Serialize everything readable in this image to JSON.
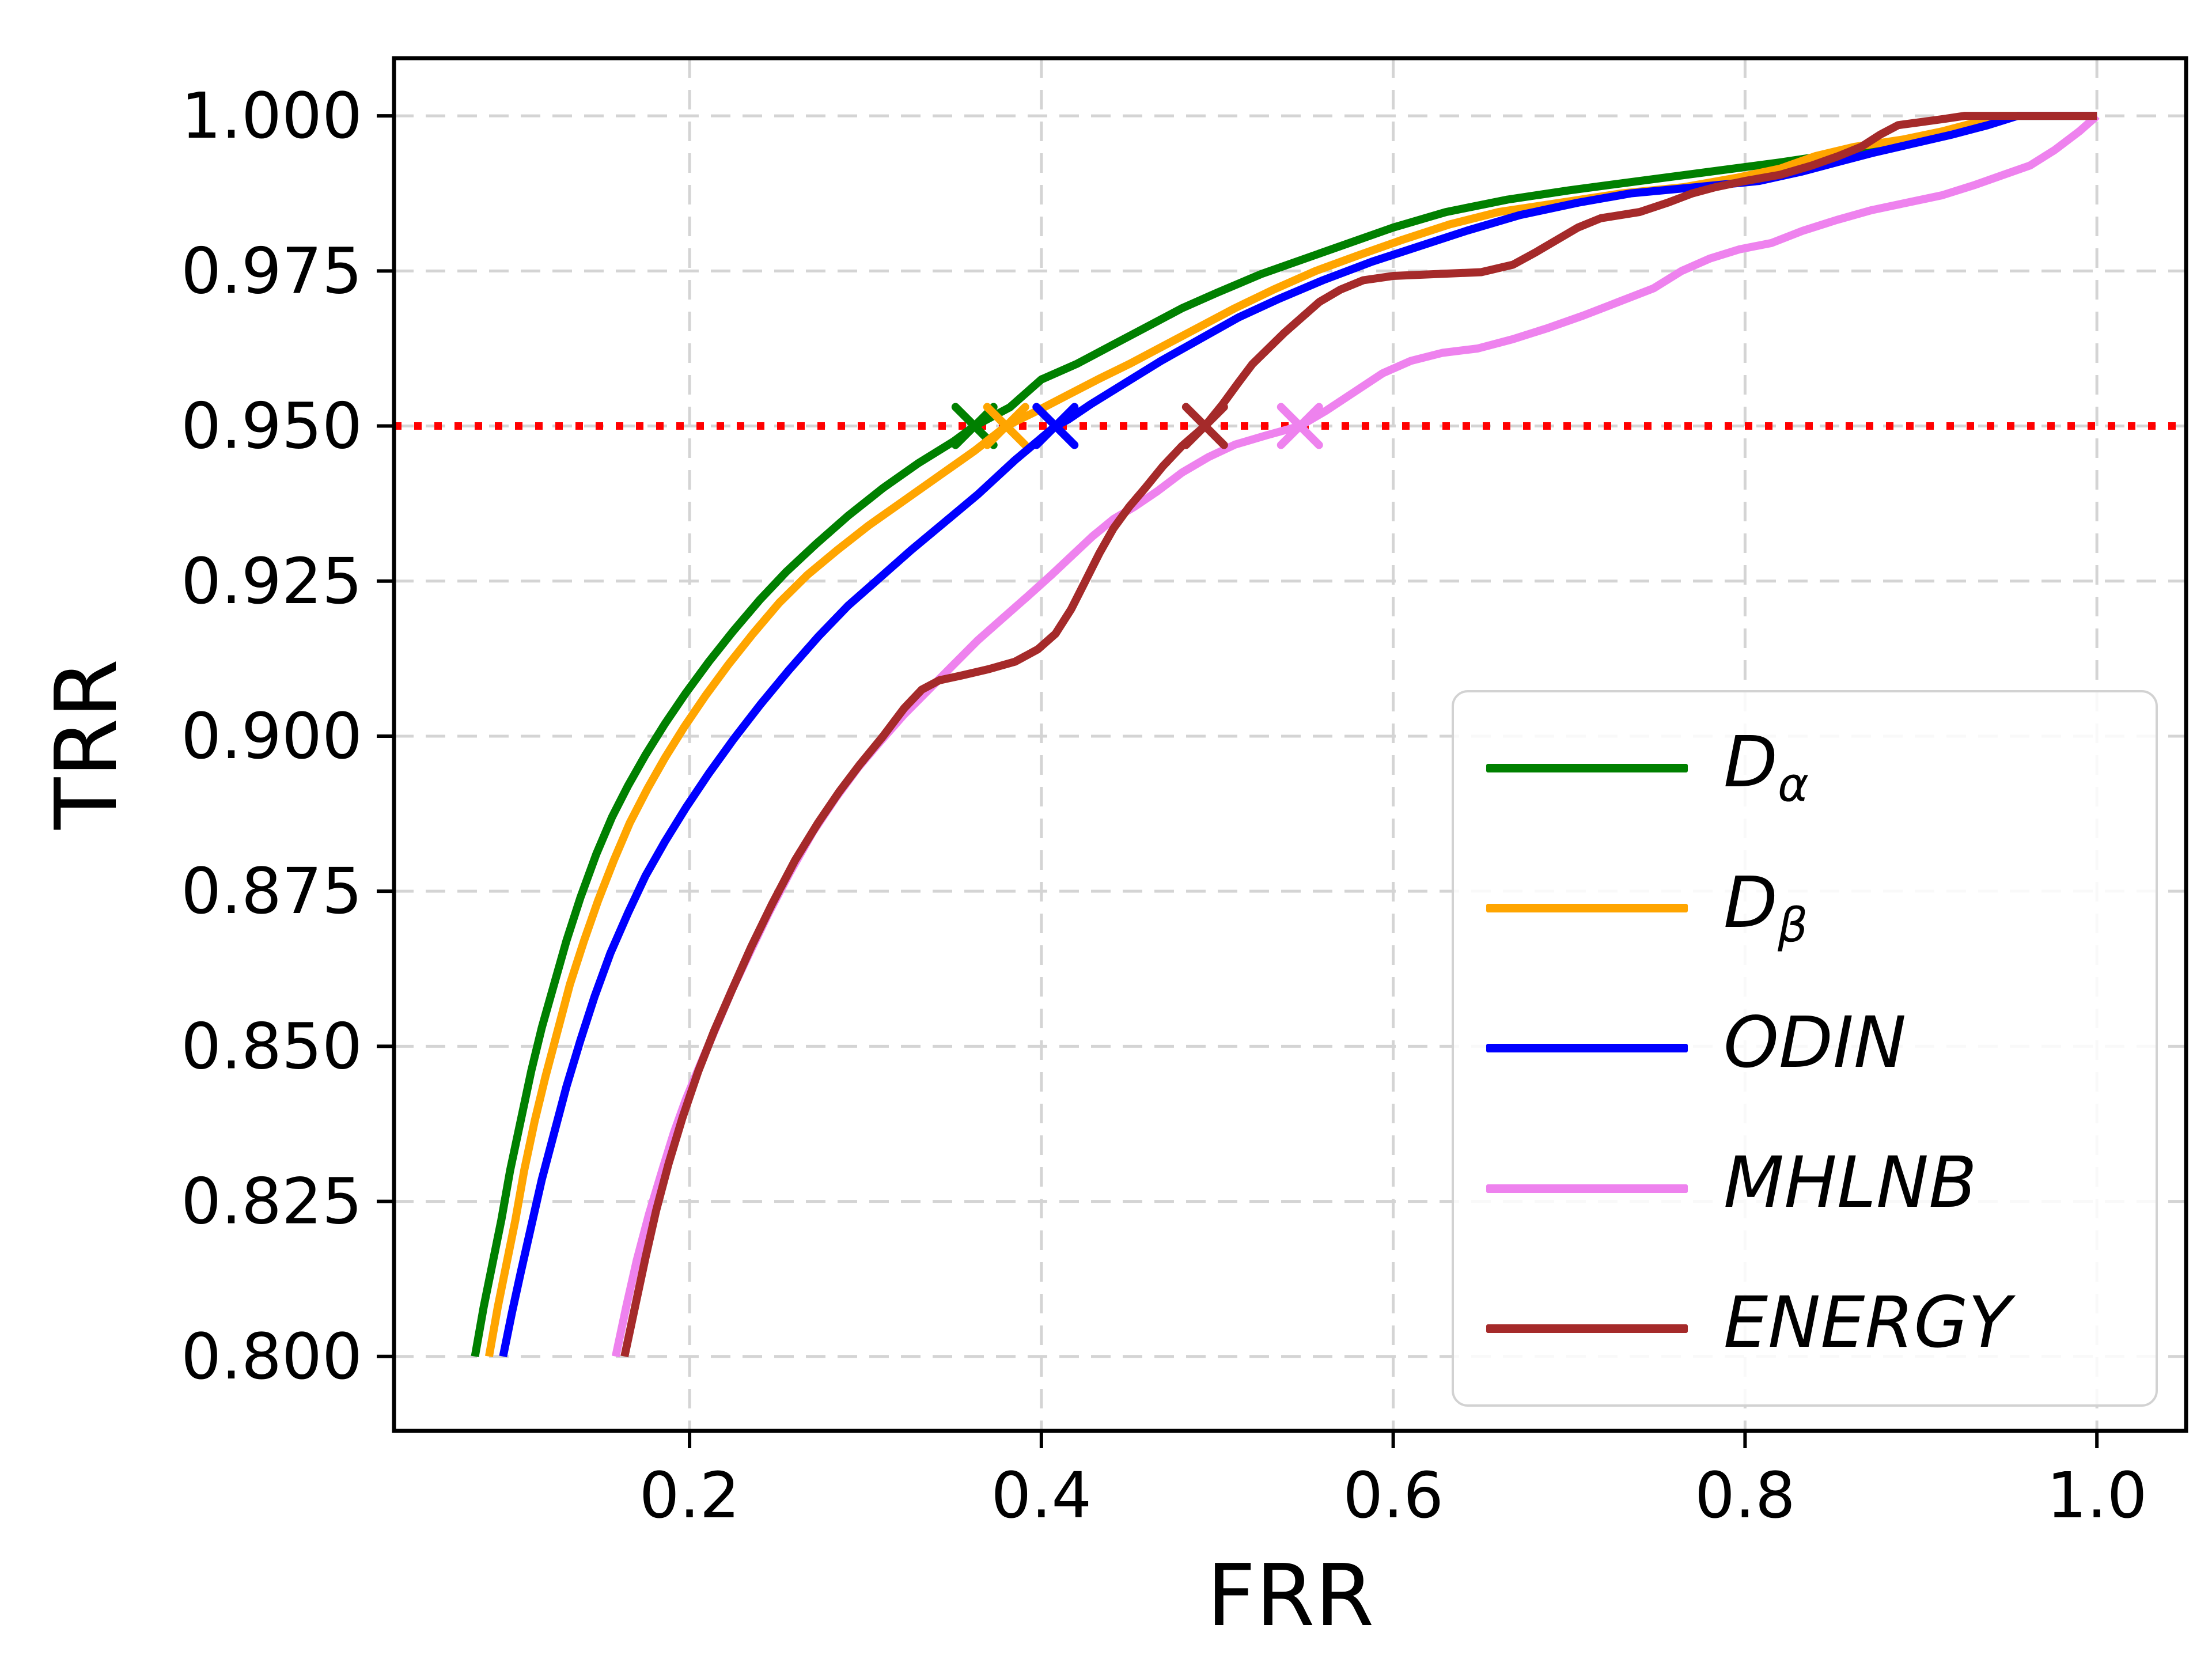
{
  "chart_data": {
    "type": "line",
    "title": "",
    "xlabel": "FRR",
    "ylabel": "TRR",
    "xlim": [
      0.032,
      1.0507
    ],
    "ylim": [
      0.788,
      1.0093
    ],
    "grid": true,
    "grid_color": "#d4d4d4",
    "background": "#ffffff",
    "x_ticks": [
      0.2,
      0.4,
      0.6,
      0.8,
      1.0
    ],
    "x_tick_labels": [
      "0.2",
      "0.4",
      "0.6",
      "0.8",
      "1.0"
    ],
    "y_ticks": [
      0.8,
      0.825,
      0.85,
      0.875,
      0.9,
      0.925,
      0.95,
      0.975,
      1.0
    ],
    "y_tick_labels": [
      "0.800",
      "0.825",
      "0.850",
      "0.875",
      "0.900",
      "0.925",
      "0.950",
      "0.975",
      "1.000"
    ],
    "threshold_line": {
      "y": 0.95,
      "color": "#ff0000",
      "style": "dotted"
    },
    "legend_position": "lower right",
    "series": [
      {
        "name": "D_alpha",
        "legend_main": "D",
        "legend_sub": "α",
        "color": "#008000",
        "marker": {
          "symbol": "x",
          "x": 0.362,
          "y": 0.95
        },
        "points": [
          [
            0.078,
            0.8
          ],
          [
            0.083,
            0.808
          ],
          [
            0.088,
            0.815
          ],
          [
            0.093,
            0.822
          ],
          [
            0.098,
            0.83
          ],
          [
            0.104,
            0.838
          ],
          [
            0.11,
            0.846
          ],
          [
            0.116,
            0.853
          ],
          [
            0.123,
            0.86
          ],
          [
            0.13,
            0.867
          ],
          [
            0.138,
            0.874
          ],
          [
            0.147,
            0.881
          ],
          [
            0.156,
            0.887
          ],
          [
            0.165,
            0.892
          ],
          [
            0.175,
            0.897
          ],
          [
            0.186,
            0.902
          ],
          [
            0.198,
            0.907
          ],
          [
            0.211,
            0.912
          ],
          [
            0.225,
            0.917
          ],
          [
            0.24,
            0.922
          ],
          [
            0.255,
            0.9265
          ],
          [
            0.272,
            0.931
          ],
          [
            0.29,
            0.9355
          ],
          [
            0.31,
            0.94
          ],
          [
            0.33,
            0.944
          ],
          [
            0.35,
            0.9475
          ],
          [
            0.362,
            0.95
          ],
          [
            0.382,
            0.953
          ],
          [
            0.4,
            0.9575
          ],
          [
            0.42,
            0.96
          ],
          [
            0.44,
            0.963
          ],
          [
            0.46,
            0.966
          ],
          [
            0.48,
            0.969
          ],
          [
            0.5,
            0.9715
          ],
          [
            0.525,
            0.9745
          ],
          [
            0.55,
            0.977
          ],
          [
            0.575,
            0.9795
          ],
          [
            0.6,
            0.982
          ],
          [
            0.63,
            0.9845
          ],
          [
            0.665,
            0.9865
          ],
          [
            0.7,
            0.988
          ],
          [
            0.74,
            0.9895
          ],
          [
            0.78,
            0.991
          ],
          [
            0.82,
            0.9925
          ],
          [
            0.855,
            0.994
          ],
          [
            0.89,
            0.9955
          ],
          [
            0.915,
            0.997
          ],
          [
            0.935,
            0.9985
          ],
          [
            0.955,
            1.0
          ],
          [
            1.0,
            1.0
          ]
        ]
      },
      {
        "name": "D_beta",
        "legend_main": "D",
        "legend_sub": "β",
        "color": "#ffa500",
        "marker": {
          "symbol": "x",
          "x": 0.38,
          "y": 0.95
        },
        "points": [
          [
            0.086,
            0.8
          ],
          [
            0.091,
            0.808
          ],
          [
            0.096,
            0.815
          ],
          [
            0.101,
            0.822
          ],
          [
            0.106,
            0.83
          ],
          [
            0.112,
            0.838
          ],
          [
            0.118,
            0.845
          ],
          [
            0.125,
            0.8525
          ],
          [
            0.132,
            0.86
          ],
          [
            0.14,
            0.867
          ],
          [
            0.148,
            0.8735
          ],
          [
            0.157,
            0.88
          ],
          [
            0.166,
            0.886
          ],
          [
            0.176,
            0.8915
          ],
          [
            0.186,
            0.8965
          ],
          [
            0.197,
            0.9015
          ],
          [
            0.209,
            0.9065
          ],
          [
            0.222,
            0.9115
          ],
          [
            0.236,
            0.9165
          ],
          [
            0.251,
            0.9215
          ],
          [
            0.267,
            0.926
          ],
          [
            0.284,
            0.93
          ],
          [
            0.302,
            0.934
          ],
          [
            0.322,
            0.938
          ],
          [
            0.342,
            0.942
          ],
          [
            0.362,
            0.946
          ],
          [
            0.38,
            0.95
          ],
          [
            0.398,
            0.9525
          ],
          [
            0.415,
            0.955
          ],
          [
            0.432,
            0.9575
          ],
          [
            0.45,
            0.96
          ],
          [
            0.47,
            0.963
          ],
          [
            0.49,
            0.966
          ],
          [
            0.51,
            0.969
          ],
          [
            0.532,
            0.972
          ],
          [
            0.556,
            0.975
          ],
          [
            0.58,
            0.9775
          ],
          [
            0.605,
            0.98
          ],
          [
            0.632,
            0.9825
          ],
          [
            0.66,
            0.9845
          ],
          [
            0.695,
            0.986
          ],
          [
            0.73,
            0.9875
          ],
          [
            0.765,
            0.9885
          ],
          [
            0.795,
            0.99
          ],
          [
            0.82,
            0.9915
          ],
          [
            0.84,
            0.9935
          ],
          [
            0.862,
            0.995
          ],
          [
            0.89,
            0.9962
          ],
          [
            0.912,
            0.9975
          ],
          [
            0.932,
            0.999
          ],
          [
            0.945,
            1.0
          ],
          [
            1.0,
            1.0
          ]
        ]
      },
      {
        "name": "ODIN",
        "legend_main": "ODIN",
        "legend_sub": "",
        "color": "#0000ff",
        "marker": {
          "symbol": "x",
          "x": 0.408,
          "y": 0.95
        },
        "points": [
          [
            0.094,
            0.8
          ],
          [
            0.099,
            0.807
          ],
          [
            0.104,
            0.8135
          ],
          [
            0.11,
            0.821
          ],
          [
            0.116,
            0.8285
          ],
          [
            0.123,
            0.836
          ],
          [
            0.13,
            0.8435
          ],
          [
            0.138,
            0.851
          ],
          [
            0.146,
            0.858
          ],
          [
            0.155,
            0.865
          ],
          [
            0.165,
            0.8715
          ],
          [
            0.175,
            0.8775
          ],
          [
            0.186,
            0.883
          ],
          [
            0.198,
            0.8885
          ],
          [
            0.211,
            0.894
          ],
          [
            0.225,
            0.8995
          ],
          [
            0.24,
            0.905
          ],
          [
            0.256,
            0.9105
          ],
          [
            0.273,
            0.916
          ],
          [
            0.29,
            0.921
          ],
          [
            0.308,
            0.9255
          ],
          [
            0.326,
            0.93
          ],
          [
            0.345,
            0.9345
          ],
          [
            0.364,
            0.939
          ],
          [
            0.385,
            0.9445
          ],
          [
            0.408,
            0.95
          ],
          [
            0.415,
            0.951
          ],
          [
            0.428,
            0.9535
          ],
          [
            0.448,
            0.957
          ],
          [
            0.468,
            0.9605
          ],
          [
            0.49,
            0.964
          ],
          [
            0.512,
            0.9675
          ],
          [
            0.535,
            0.9705
          ],
          [
            0.56,
            0.9735
          ],
          [
            0.588,
            0.9765
          ],
          [
            0.615,
            0.979
          ],
          [
            0.642,
            0.9815
          ],
          [
            0.672,
            0.984
          ],
          [
            0.705,
            0.986
          ],
          [
            0.735,
            0.9875
          ],
          [
            0.772,
            0.9885
          ],
          [
            0.808,
            0.9895
          ],
          [
            0.832,
            0.991
          ],
          [
            0.852,
            0.9925
          ],
          [
            0.872,
            0.994
          ],
          [
            0.895,
            0.9955
          ],
          [
            0.918,
            0.997
          ],
          [
            0.938,
            0.9985
          ],
          [
            0.955,
            1.0
          ],
          [
            1.0,
            1.0
          ]
        ]
      },
      {
        "name": "MHLNB",
        "legend_main": "MHLNB",
        "legend_sub": "",
        "color": "#ee82ee",
        "marker": {
          "symbol": "x",
          "x": 0.547,
          "y": 0.95
        },
        "points": [
          [
            0.158,
            0.8
          ],
          [
            0.164,
            0.808
          ],
          [
            0.17,
            0.8155
          ],
          [
            0.177,
            0.823
          ],
          [
            0.185,
            0.8305
          ],
          [
            0.191,
            0.836
          ],
          [
            0.198,
            0.8415
          ],
          [
            0.206,
            0.847
          ],
          [
            0.215,
            0.853
          ],
          [
            0.224,
            0.859
          ],
          [
            0.234,
            0.865
          ],
          [
            0.245,
            0.8715
          ],
          [
            0.257,
            0.878
          ],
          [
            0.27,
            0.8845
          ],
          [
            0.283,
            0.89
          ],
          [
            0.296,
            0.895
          ],
          [
            0.308,
            0.899
          ],
          [
            0.322,
            0.9035
          ],
          [
            0.336,
            0.9075
          ],
          [
            0.35,
            0.9115
          ],
          [
            0.364,
            0.9155
          ],
          [
            0.378,
            0.919
          ],
          [
            0.392,
            0.9225
          ],
          [
            0.405,
            0.9258
          ],
          [
            0.417,
            0.929
          ],
          [
            0.429,
            0.9322
          ],
          [
            0.441,
            0.935
          ],
          [
            0.453,
            0.937
          ],
          [
            0.466,
            0.9395
          ],
          [
            0.48,
            0.9425
          ],
          [
            0.495,
            0.945
          ],
          [
            0.51,
            0.947
          ],
          [
            0.528,
            0.9485
          ],
          [
            0.547,
            0.95
          ],
          [
            0.562,
            0.9525
          ],
          [
            0.578,
            0.9555
          ],
          [
            0.594,
            0.9585
          ],
          [
            0.61,
            0.9605
          ],
          [
            0.628,
            0.9618
          ],
          [
            0.648,
            0.9625
          ],
          [
            0.668,
            0.964
          ],
          [
            0.688,
            0.9658
          ],
          [
            0.708,
            0.9678
          ],
          [
            0.728,
            0.97
          ],
          [
            0.748,
            0.9722
          ],
          [
            0.764,
            0.975
          ],
          [
            0.78,
            0.977
          ],
          [
            0.797,
            0.9785
          ],
          [
            0.815,
            0.9795
          ],
          [
            0.833,
            0.9815
          ],
          [
            0.852,
            0.9832
          ],
          [
            0.872,
            0.9848
          ],
          [
            0.892,
            0.986
          ],
          [
            0.912,
            0.9872
          ],
          [
            0.93,
            0.9888
          ],
          [
            0.947,
            0.9905
          ],
          [
            0.962,
            0.992
          ],
          [
            0.976,
            0.9945
          ],
          [
            0.99,
            0.9975
          ],
          [
            1.0,
            1.0
          ]
        ]
      },
      {
        "name": "ENERGY",
        "legend_main": "ENERGY",
        "legend_sub": "",
        "color": "#a52a2a",
        "marker": {
          "symbol": "x",
          "x": 0.493,
          "y": 0.95
        },
        "points": [
          [
            0.163,
            0.8
          ],
          [
            0.169,
            0.808
          ],
          [
            0.175,
            0.816
          ],
          [
            0.181,
            0.8235
          ],
          [
            0.188,
            0.831
          ],
          [
            0.196,
            0.8385
          ],
          [
            0.205,
            0.846
          ],
          [
            0.214,
            0.8525
          ],
          [
            0.224,
            0.859
          ],
          [
            0.235,
            0.866
          ],
          [
            0.247,
            0.873
          ],
          [
            0.26,
            0.88
          ],
          [
            0.273,
            0.886
          ],
          [
            0.285,
            0.891
          ],
          [
            0.297,
            0.8955
          ],
          [
            0.31,
            0.9
          ],
          [
            0.322,
            0.9045
          ],
          [
            0.332,
            0.9075
          ],
          [
            0.342,
            0.909
          ],
          [
            0.355,
            0.9098
          ],
          [
            0.37,
            0.9108
          ],
          [
            0.385,
            0.912
          ],
          [
            0.398,
            0.914
          ],
          [
            0.408,
            0.9165
          ],
          [
            0.417,
            0.9205
          ],
          [
            0.425,
            0.925
          ],
          [
            0.433,
            0.9295
          ],
          [
            0.441,
            0.9335
          ],
          [
            0.45,
            0.937
          ],
          [
            0.459,
            0.94
          ],
          [
            0.469,
            0.9435
          ],
          [
            0.48,
            0.9468
          ],
          [
            0.493,
            0.95
          ],
          [
            0.503,
            0.9535
          ],
          [
            0.512,
            0.957
          ],
          [
            0.52,
            0.96
          ],
          [
            0.529,
            0.9625
          ],
          [
            0.538,
            0.965
          ],
          [
            0.548,
            0.9675
          ],
          [
            0.558,
            0.97
          ],
          [
            0.57,
            0.972
          ],
          [
            0.583,
            0.9735
          ],
          [
            0.6,
            0.9742
          ],
          [
            0.65,
            0.9748
          ],
          [
            0.668,
            0.976
          ],
          [
            0.681,
            0.978
          ],
          [
            0.693,
            0.98
          ],
          [
            0.705,
            0.982
          ],
          [
            0.718,
            0.9835
          ],
          [
            0.74,
            0.9845
          ],
          [
            0.756,
            0.986
          ],
          [
            0.77,
            0.9875
          ],
          [
            0.783,
            0.9885
          ],
          [
            0.8,
            0.9895
          ],
          [
            0.82,
            0.9905
          ],
          [
            0.838,
            0.992
          ],
          [
            0.853,
            0.9935
          ],
          [
            0.866,
            0.995
          ],
          [
            0.877,
            0.997
          ],
          [
            0.887,
            0.9985
          ],
          [
            0.9,
            0.999
          ],
          [
            0.913,
            0.9995
          ],
          [
            0.925,
            1.0
          ],
          [
            1.0,
            1.0
          ]
        ]
      }
    ]
  }
}
